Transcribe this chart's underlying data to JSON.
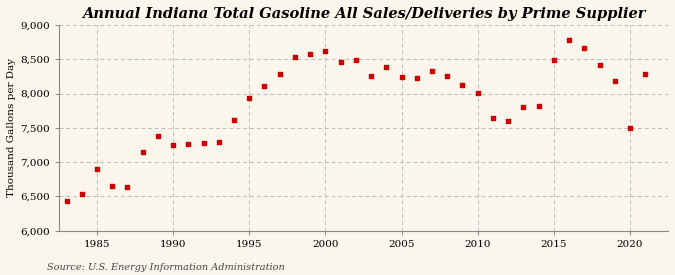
{
  "title": "Annual Indiana Total Gasoline All Sales/Deliveries by Prime Supplier",
  "ylabel": "Thousand Gallons per Day",
  "source": "Source: U.S. Energy Information Administration",
  "years": [
    1983,
    1984,
    1985,
    1986,
    1987,
    1988,
    1989,
    1990,
    1991,
    1992,
    1993,
    1994,
    1995,
    1996,
    1997,
    1998,
    1999,
    2000,
    2001,
    2002,
    2003,
    2004,
    2005,
    2006,
    2007,
    2008,
    2009,
    2010,
    2011,
    2012,
    2013,
    2014,
    2015,
    2016,
    2017,
    2018,
    2019,
    2020,
    2021
  ],
  "values": [
    6440,
    6530,
    6900,
    6650,
    6640,
    7150,
    7380,
    7250,
    7270,
    7280,
    7300,
    7620,
    7930,
    8110,
    8290,
    8530,
    8580,
    8620,
    8460,
    8490,
    8260,
    8390,
    8240,
    8230,
    8330,
    8250,
    8130,
    8010,
    7640,
    7600,
    7800,
    7820,
    8490,
    8780,
    8670,
    8420,
    8180,
    7500,
    8280
  ],
  "marker_color": "#cc0000",
  "marker_size": 9,
  "background_color": "#faf6ec",
  "grid_color": "#bbbbbb",
  "ylim": [
    6000,
    9000
  ],
  "yticks": [
    6000,
    6500,
    7000,
    7500,
    8000,
    8500,
    9000
  ],
  "xlim": [
    1982.5,
    2022.5
  ],
  "xticks": [
    1985,
    1990,
    1995,
    2000,
    2005,
    2010,
    2015,
    2020
  ],
  "title_fontsize": 10.5,
  "ylabel_fontsize": 7.5,
  "tick_fontsize": 7.5,
  "source_fontsize": 7
}
